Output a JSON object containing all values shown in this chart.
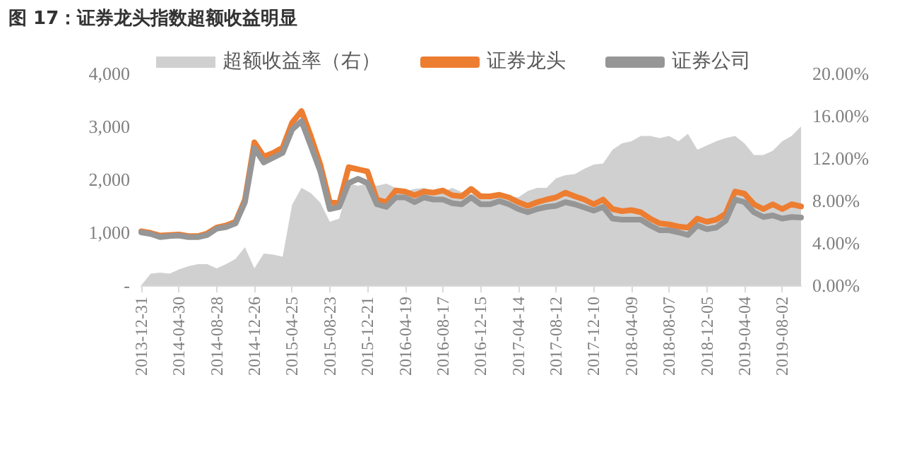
{
  "chart_data": {
    "type": "line",
    "title": "图 17：证券龙头指数超额收益明显",
    "categories": [
      "2013-12-31",
      null,
      null,
      null,
      "2014-04-30",
      null,
      null,
      null,
      "2014-08-28",
      null,
      null,
      null,
      "2014-12-26",
      null,
      null,
      null,
      "2015-04-25",
      null,
      null,
      null,
      "2015-08-23",
      null,
      null,
      null,
      "2015-12-21",
      null,
      null,
      null,
      "2016-04-19",
      null,
      null,
      null,
      "2016-08-17",
      null,
      null,
      null,
      "2016-12-15",
      null,
      null,
      null,
      "2017-04-14",
      null,
      null,
      null,
      "2017-08-12",
      null,
      null,
      null,
      "2017-12-10",
      null,
      null,
      null,
      "2018-04-09",
      null,
      null,
      null,
      "2018-08-07",
      null,
      null,
      null,
      "2018-12-05",
      null,
      null,
      null,
      "2019-04-04",
      null,
      null,
      null,
      "2019-08-02",
      null,
      null
    ],
    "series": [
      {
        "name": "超额收益率（右）",
        "type": "area",
        "axis": "y2",
        "color": "#d0d0d0",
        "values": [
          0,
          1.1,
          1.2,
          1.1,
          1.5,
          1.8,
          2.0,
          2.0,
          1.6,
          2.0,
          2.5,
          3.6,
          1.6,
          3.0,
          2.9,
          2.7,
          7.6,
          9.2,
          8.7,
          7.8,
          6.0,
          6.3,
          9.6,
          9.4,
          9.6,
          9.4,
          9.6,
          9.2,
          8.9,
          9.1,
          9.2,
          8.9,
          8.8,
          9.2,
          8.8,
          8.6,
          8.5,
          8.5,
          8.5,
          8.4,
          8.3,
          8.9,
          9.2,
          9.2,
          10.1,
          10.4,
          10.5,
          11.0,
          11.4,
          11.5,
          12.8,
          13.4,
          13.6,
          14.1,
          14.1,
          13.9,
          14.1,
          13.6,
          14.3,
          12.8,
          13.2,
          13.6,
          13.9,
          14.1,
          13.4,
          12.3,
          12.3,
          12.7,
          13.6,
          14.1,
          15.0
        ]
      },
      {
        "name": "证券龙头",
        "color": "#ed7d31",
        "values": [
          1020,
          990,
          940,
          950,
          960,
          930,
          930,
          980,
          1090,
          1130,
          1200,
          1620,
          2700,
          2430,
          2500,
          2600,
          3070,
          3290,
          2810,
          2280,
          1570,
          1550,
          2230,
          2190,
          2150,
          1620,
          1570,
          1790,
          1770,
          1700,
          1770,
          1750,
          1790,
          1700,
          1680,
          1820,
          1680,
          1680,
          1710,
          1660,
          1570,
          1500,
          1570,
          1620,
          1660,
          1750,
          1680,
          1620,
          1530,
          1620,
          1440,
          1400,
          1420,
          1380,
          1260,
          1170,
          1150,
          1110,
          1090,
          1260,
          1200,
          1240,
          1350,
          1770,
          1730,
          1530,
          1440,
          1530,
          1440,
          1530,
          1490
        ]
      },
      {
        "name": "证券公司",
        "color": "#969696",
        "values": [
          1000,
          970,
          910,
          930,
          940,
          910,
          910,
          950,
          1070,
          1100,
          1170,
          1570,
          2590,
          2320,
          2410,
          2500,
          2940,
          3100,
          2630,
          2150,
          1440,
          1480,
          1930,
          2010,
          1930,
          1530,
          1480,
          1660,
          1660,
          1570,
          1660,
          1620,
          1620,
          1550,
          1530,
          1660,
          1530,
          1530,
          1590,
          1530,
          1440,
          1380,
          1440,
          1480,
          1500,
          1570,
          1530,
          1470,
          1410,
          1480,
          1260,
          1240,
          1240,
          1240,
          1130,
          1040,
          1040,
          1000,
          950,
          1130,
          1060,
          1090,
          1220,
          1620,
          1570,
          1380,
          1290,
          1320,
          1260,
          1290,
          1280
        ]
      }
    ],
    "ylim": [
      0,
      4000
    ],
    "yticks": [
      {
        "value": 0,
        "label": "-"
      },
      {
        "value": 1000,
        "label": "1,000"
      },
      {
        "value": 2000,
        "label": "2,000"
      },
      {
        "value": 3000,
        "label": "3,000"
      },
      {
        "value": 4000,
        "label": "4,000"
      }
    ],
    "y2lim": [
      0,
      20
    ],
    "y2ticks": [
      {
        "value": 0,
        "label": "0.00%"
      },
      {
        "value": 4,
        "label": "4.00%"
      },
      {
        "value": 8,
        "label": "8.00%"
      },
      {
        "value": 12,
        "label": "12.00%"
      },
      {
        "value": 16,
        "label": "16.00%"
      },
      {
        "value": 20,
        "label": "20.00%"
      }
    ],
    "legend": "top",
    "grid": false,
    "marker": "none",
    "line_style": "solid"
  }
}
